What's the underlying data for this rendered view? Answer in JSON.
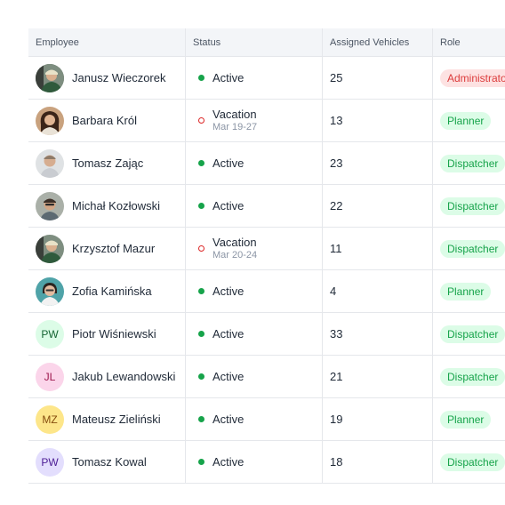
{
  "table": {
    "headers": {
      "employee": "Employee",
      "status": "Status",
      "vehicles": "Assigned Vehicles",
      "role": "Role"
    },
    "rows": [
      {
        "name": "Janusz Wieczorek",
        "avatar": "photo-avatar",
        "status": "Active",
        "status_sub": "",
        "vehicles": "25",
        "role": "Administrator"
      },
      {
        "name": "Barbara Król",
        "avatar": "photo-avatar",
        "status": "Vacation",
        "status_sub": "Mar 19-27",
        "vehicles": "13",
        "role": "Planner"
      },
      {
        "name": "Tomasz Zając",
        "avatar": "photo-avatar",
        "status": "Active",
        "status_sub": "",
        "vehicles": "23",
        "role": "Dispatcher"
      },
      {
        "name": "Michał Kozłowski",
        "avatar": "photo-avatar",
        "status": "Active",
        "status_sub": "",
        "vehicles": "22",
        "role": "Dispatcher"
      },
      {
        "name": "Krzysztof Mazur",
        "avatar": "photo-avatar",
        "status": "Vacation",
        "status_sub": "Mar 20-24",
        "vehicles": "11",
        "role": "Dispatcher"
      },
      {
        "name": "Zofia Kamińska",
        "avatar": "photo-avatar",
        "status": "Active",
        "status_sub": "",
        "vehicles": "4",
        "role": "Planner"
      },
      {
        "name": "Piotr Wiśniewski",
        "avatar": "PW",
        "status": "Active",
        "status_sub": "",
        "vehicles": "33",
        "role": "Dispatcher"
      },
      {
        "name": "Jakub Lewandowski",
        "avatar": "JL",
        "status": "Active",
        "status_sub": "",
        "vehicles": "21",
        "role": "Dispatcher"
      },
      {
        "name": "Mateusz Zieliński",
        "avatar": "MZ",
        "status": "Active",
        "status_sub": "",
        "vehicles": "19",
        "role": "Planner"
      },
      {
        "name": "Tomasz Kowal",
        "avatar": "PW",
        "status": "Active",
        "status_sub": "",
        "vehicles": "18",
        "role": "Dispatcher"
      }
    ]
  },
  "colors": {
    "active_dot": "#16a34a",
    "vacation_ring": "#dc2626",
    "admin_badge_bg": "#fde2e2",
    "admin_badge_text": "#dc3b3b",
    "role_badge_bg": "#dcfce7",
    "role_badge_text": "#16a34a",
    "header_bg": "#f3f5f8",
    "initials_pw_green": "#dcfce7",
    "initials_jl_pink": "#fbd5ea",
    "initials_mz_yellow": "#fde68a",
    "initials_pw_purple": "#e3defd"
  }
}
